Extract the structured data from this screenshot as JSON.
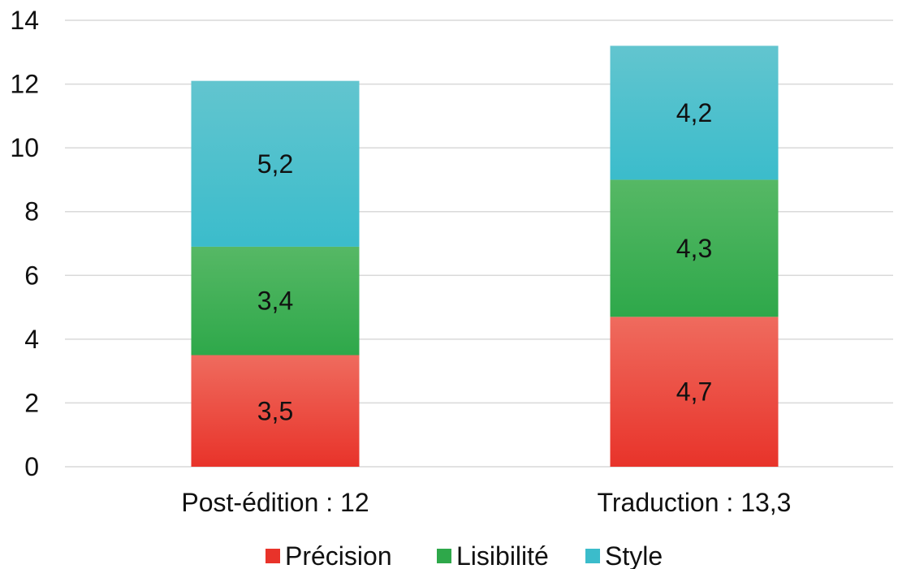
{
  "chart_data": {
    "type": "bar",
    "stacked": true,
    "categories": [
      "Post-édition : 12",
      "Traduction : 13,3"
    ],
    "series": [
      {
        "name": "Précision",
        "values": [
          3.5,
          4.7
        ],
        "labels": [
          "3,5",
          "4,7"
        ],
        "color": "#e8332a",
        "color_top": "#ef6b5e"
      },
      {
        "name": "Lisibilité",
        "values": [
          3.4,
          4.3
        ],
        "labels": [
          "3,4",
          "4,3"
        ],
        "color": "#2ea84a",
        "color_top": "#56b865"
      },
      {
        "name": "Style",
        "values": [
          5.2,
          4.2
        ],
        "labels": [
          "5,2",
          "4,2"
        ],
        "color": "#3bbccb",
        "color_top": "#62c5cf"
      }
    ],
    "ylim": [
      0,
      14
    ],
    "yticks": [
      0,
      2,
      4,
      6,
      8,
      10,
      12,
      14
    ],
    "grid": true,
    "legend_position": "bottom",
    "title": "",
    "xlabel": "",
    "ylabel": ""
  }
}
